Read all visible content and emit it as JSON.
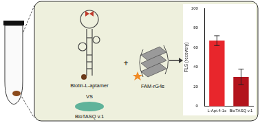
{
  "chart_data": {
    "type": "bar",
    "categories": [
      "L-Apt.4-1c",
      "BioTASQ v.1"
    ],
    "values": [
      67,
      30
    ],
    "error": [
      5,
      8
    ],
    "colors": [
      "#e8262c",
      "#b3141d"
    ],
    "y_label": "FLS (recovery)",
    "ylim": [
      0,
      100
    ],
    "yticks": [
      0,
      20,
      40,
      60,
      80,
      100
    ],
    "grid": false
  },
  "diagram": {
    "labels": {
      "aptamer": "Biotin-L-aptamer",
      "versus": "VS",
      "ligand": "BioTASQ v.1",
      "plus": "+",
      "probe": "FAM-rG4s"
    }
  }
}
